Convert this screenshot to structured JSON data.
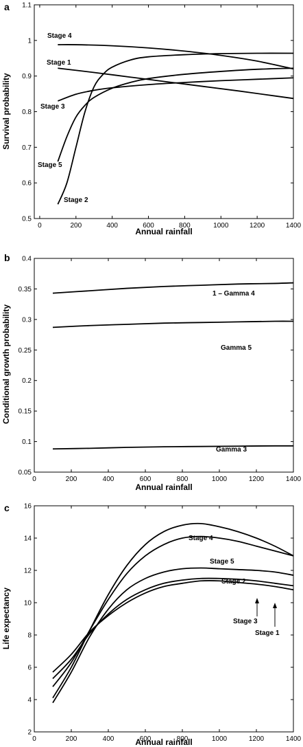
{
  "chart_data": [
    {
      "panel": "a",
      "type": "line",
      "title": "",
      "xlabel": "Annual rainfall",
      "ylabel": "Survival probability",
      "xlim": [
        -30,
        1400
      ],
      "ylim": [
        0.5,
        1.1
      ],
      "xticks": [
        0,
        200,
        400,
        600,
        800,
        1000,
        1200,
        1400
      ],
      "yticks": [
        0.5,
        0.6,
        0.7,
        0.8,
        0.9,
        1,
        1.1
      ],
      "grid": false,
      "series": [
        {
          "name": "Stage 4",
          "x": [
            100,
            200,
            400,
            600,
            800,
            1000,
            1200,
            1400
          ],
          "y": [
            0.988,
            0.988,
            0.985,
            0.979,
            0.97,
            0.958,
            0.942,
            0.92
          ]
        },
        {
          "name": "Stage 1",
          "x": [
            100,
            300,
            500,
            700,
            900,
            1100,
            1300,
            1400
          ],
          "y": [
            0.922,
            0.91,
            0.897,
            0.884,
            0.871,
            0.858,
            0.844,
            0.837
          ]
        },
        {
          "name": "Stage 3",
          "x": [
            100,
            200,
            300,
            400,
            600,
            800,
            1000,
            1200,
            1400
          ],
          "y": [
            0.83,
            0.849,
            0.86,
            0.867,
            0.876,
            0.882,
            0.887,
            0.891,
            0.895
          ]
        },
        {
          "name": "Stage 5",
          "x": [
            100,
            150,
            200,
            250,
            300,
            400,
            500,
            600,
            800,
            1000,
            1200,
            1400
          ],
          "y": [
            0.66,
            0.73,
            0.785,
            0.818,
            0.84,
            0.866,
            0.882,
            0.893,
            0.905,
            0.913,
            0.919,
            0.922
          ]
        },
        {
          "name": "Stage 2",
          "x": [
            100,
            150,
            200,
            250,
            300,
            350,
            400,
            500,
            600,
            800,
            1000,
            1200,
            1400
          ],
          "y": [
            0.54,
            0.6,
            0.7,
            0.8,
            0.87,
            0.905,
            0.925,
            0.945,
            0.954,
            0.96,
            0.963,
            0.964,
            0.964
          ]
        }
      ],
      "annotations": [
        "Stage 4",
        "Stage 1",
        "Stage 3",
        "Stage 5",
        "Stage 2"
      ]
    },
    {
      "panel": "b",
      "type": "line",
      "title": "",
      "xlabel": "Annual rainfall",
      "ylabel": "Conditional growth probability",
      "xlim": [
        0,
        1400
      ],
      "ylim": [
        0.05,
        0.4
      ],
      "xticks": [
        0,
        200,
        400,
        600,
        800,
        1000,
        1200,
        1400
      ],
      "yticks": [
        0.05,
        0.1,
        0.15,
        0.2,
        0.25,
        0.3,
        0.35,
        0.4
      ],
      "grid": false,
      "series": [
        {
          "name": "1 – Gamma 4",
          "x": [
            100,
            300,
            500,
            700,
            900,
            1100,
            1300,
            1400
          ],
          "y": [
            0.343,
            0.347,
            0.351,
            0.354,
            0.356,
            0.358,
            0.359,
            0.36
          ]
        },
        {
          "name": "Gamma 5",
          "x": [
            100,
            300,
            500,
            700,
            900,
            1100,
            1300,
            1400
          ],
          "y": [
            0.287,
            0.29,
            0.292,
            0.294,
            0.295,
            0.296,
            0.297,
            0.297
          ]
        },
        {
          "name": "Gamma 3",
          "x": [
            100,
            300,
            500,
            700,
            900,
            1100,
            1300,
            1400
          ],
          "y": [
            0.088,
            0.089,
            0.0905,
            0.0915,
            0.092,
            0.0925,
            0.093,
            0.093
          ]
        }
      ],
      "annotations": [
        "1 – Gamma 4",
        "Gamma 5",
        "Gamma 3"
      ]
    },
    {
      "panel": "c",
      "type": "line",
      "title": "",
      "xlabel": "Annual rainfall",
      "ylabel": "Life expectancy",
      "xlim": [
        0,
        1400
      ],
      "ylim": [
        2,
        16
      ],
      "xticks": [
        0,
        200,
        400,
        600,
        800,
        1000,
        1200,
        1400
      ],
      "yticks": [
        2,
        4,
        6,
        8,
        10,
        12,
        14,
        16
      ],
      "grid": false,
      "series": [
        {
          "name": "Stage 4",
          "x": [
            100,
            200,
            300,
            400,
            500,
            600,
            700,
            800,
            900,
            1000,
            1100,
            1200,
            1300,
            1400
          ],
          "y": [
            4.1,
            6.0,
            8.3,
            10.5,
            12.3,
            13.6,
            14.4,
            14.8,
            14.9,
            14.7,
            14.4,
            14.0,
            13.5,
            12.9
          ]
        },
        {
          "name": "Stage 5",
          "x": [
            100,
            200,
            300,
            400,
            500,
            600,
            700,
            800,
            900,
            1000,
            1100,
            1200,
            1300,
            1400
          ],
          "y": [
            4.8,
            6.3,
            8.3,
            10.2,
            11.8,
            12.9,
            13.6,
            14.0,
            14.1,
            14.0,
            13.8,
            13.5,
            13.2,
            12.9
          ]
        },
        {
          "name": "Stage 2",
          "x": [
            100,
            200,
            300,
            400,
            500,
            600,
            700,
            800,
            900,
            1000,
            1100,
            1200,
            1300,
            1400
          ],
          "y": [
            3.8,
            5.7,
            7.9,
            9.6,
            10.8,
            11.5,
            11.9,
            12.1,
            12.15,
            12.1,
            12.05,
            12.0,
            11.9,
            11.7
          ]
        },
        {
          "name": "Stage 3",
          "x": [
            100,
            200,
            300,
            400,
            500,
            600,
            700,
            800,
            900,
            1000,
            1100,
            1200,
            1300,
            1400
          ],
          "y": [
            5.3,
            6.5,
            8.1,
            9.3,
            10.2,
            10.8,
            11.2,
            11.4,
            11.5,
            11.5,
            11.45,
            11.35,
            11.2,
            11.05
          ]
        },
        {
          "name": "Stage 1",
          "x": [
            100,
            200,
            300,
            400,
            500,
            600,
            700,
            800,
            900,
            1000,
            1100,
            1200,
            1300,
            1400
          ],
          "y": [
            5.7,
            6.8,
            8.2,
            9.2,
            10.0,
            10.6,
            11.0,
            11.2,
            11.35,
            11.35,
            11.25,
            11.15,
            11.0,
            10.8
          ]
        }
      ],
      "annotations": [
        "Stage 4",
        "Stage 5",
        "Stage 2",
        "Stage 3",
        "Stage 1"
      ]
    }
  ]
}
